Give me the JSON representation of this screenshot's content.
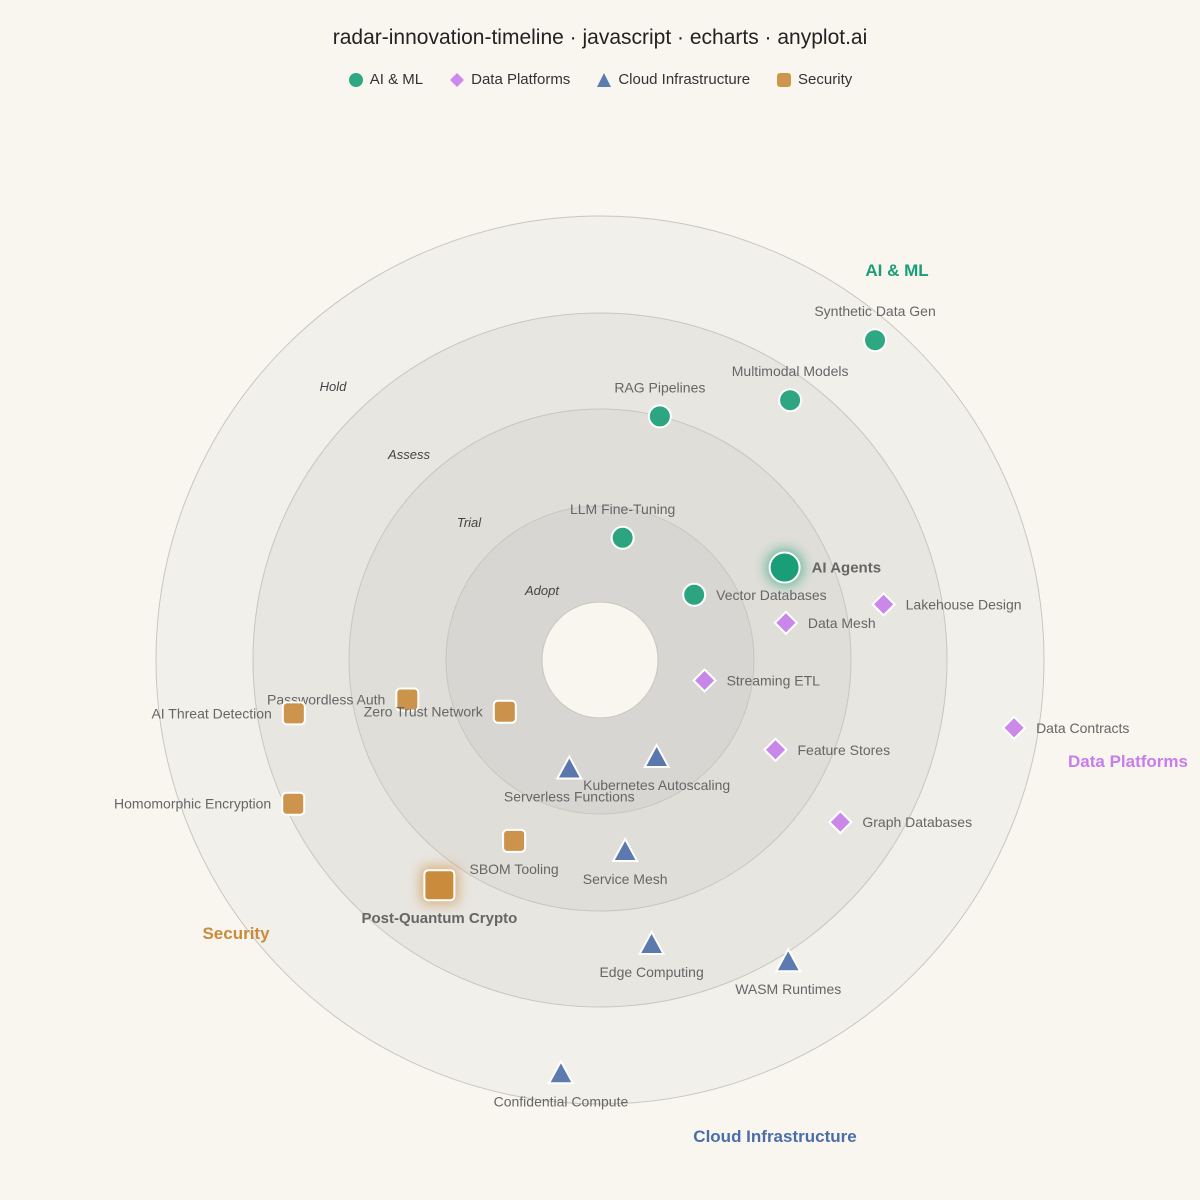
{
  "chart_data": {
    "type": "scatter",
    "subtype": "technology-radar",
    "title": "radar-innovation-timeline · javascript · echarts · anyplot.ai",
    "rings": [
      "Adopt",
      "Trial",
      "Assess",
      "Hold"
    ],
    "quadrants": [
      {
        "name": "AI & ML",
        "color": "#1a9e77",
        "symbol": "circle"
      },
      {
        "name": "Data Platforms",
        "color": "#c77dea",
        "symbol": "diamond"
      },
      {
        "name": "Cloud Infrastructure",
        "color": "#4c6ea8",
        "symbol": "triangle"
      },
      {
        "name": "Security",
        "color": "#c98b3c",
        "symbol": "roundRect"
      }
    ],
    "points": [
      {
        "name": "Synthetic Data Gen",
        "quadrant": 0,
        "r": 0.95,
        "angle": 49.3
      },
      {
        "name": "Multimodal Models",
        "quadrant": 0,
        "r": 0.725,
        "angle": 53.8
      },
      {
        "name": "RAG Pipelines",
        "quadrant": 0,
        "r": 0.565,
        "angle": 76.2
      },
      {
        "name": "LLM Fine-Tuning",
        "quadrant": 0,
        "r": 0.28,
        "angle": 79.5
      },
      {
        "name": "AI Agents",
        "quadrant": 0,
        "r": 0.465,
        "angle": 26.6,
        "highlight": true
      },
      {
        "name": "Vector Databases",
        "quadrant": 0,
        "r": 0.258,
        "angle": 34.7
      },
      {
        "name": "Lakehouse Design",
        "quadrant": 1,
        "r": 0.651,
        "angle": 11.1
      },
      {
        "name": "Data Mesh",
        "quadrant": 1,
        "r": 0.427,
        "angle": 11.3
      },
      {
        "name": "Streaming ETL",
        "quadrant": 1,
        "r": 0.24,
        "angle": -11.1
      },
      {
        "name": "Feature Stores",
        "quadrant": 1,
        "r": 0.444,
        "angle": -27.1
      },
      {
        "name": "Graph Databases",
        "quadrant": 1,
        "r": 0.653,
        "angle": -34.0
      },
      {
        "name": "Data Contracts",
        "quadrant": 1,
        "r": 0.945,
        "angle": -9.3
      },
      {
        "name": "Kubernetes Autoscaling",
        "quadrant": 2,
        "r": 0.253,
        "angle": -59.7
      },
      {
        "name": "Serverless Functions",
        "quadrant": 2,
        "r": 0.254,
        "angle": -105.8
      },
      {
        "name": "Service Mesh",
        "quadrant": 2,
        "r": 0.434,
        "angle": -82.5
      },
      {
        "name": "Edge Computing",
        "quadrant": 2,
        "r": 0.65,
        "angle": -79.7
      },
      {
        "name": "WASM Runtimes",
        "quadrant": 2,
        "r": 0.8,
        "angle": -58.0
      },
      {
        "name": "Confidential Compute",
        "quadrant": 2,
        "r": 0.935,
        "angle": -95.4
      },
      {
        "name": "Passwordless Auth",
        "quadrant": 3,
        "r": 0.443,
        "angle": -168.4
      },
      {
        "name": "Zero Trust Network",
        "quadrant": 3,
        "r": 0.244,
        "angle": -151.5
      },
      {
        "name": "AI Threat Detection",
        "quadrant": 3,
        "r": 0.7,
        "angle": -170.1
      },
      {
        "name": "SBOM Tooling",
        "quadrant": 3,
        "r": 0.451,
        "angle": -115.4
      },
      {
        "name": "Homomorphic Encryption",
        "quadrant": 3,
        "r": 0.763,
        "angle": -154.9
      },
      {
        "name": "Post-Quantum Crypto",
        "quadrant": 3,
        "r": 0.623,
        "angle": -125.5,
        "highlight": true
      }
    ]
  },
  "legend": [
    {
      "label": "AI & ML",
      "icon": "circle-icon"
    },
    {
      "label": "Data Platforms",
      "icon": "diamond-icon"
    },
    {
      "label": "Cloud Infrastructure",
      "icon": "triangle-icon"
    },
    {
      "label": "Security",
      "icon": "rounded-square-icon"
    }
  ],
  "colors": {
    "background": "#f9f6f0",
    "text": "#666666",
    "title": "#222222"
  }
}
